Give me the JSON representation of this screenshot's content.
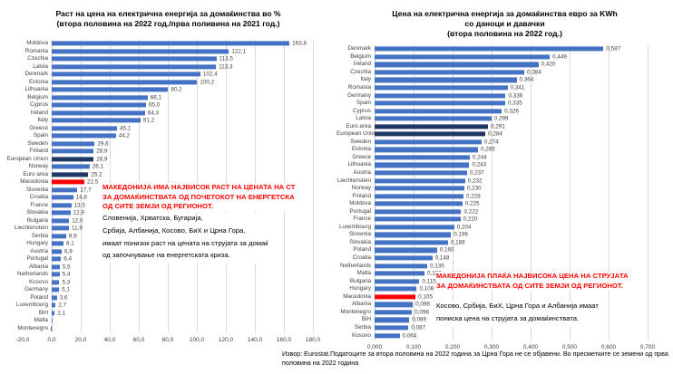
{
  "colors": {
    "bar_default": "#4472C4",
    "bar_aggregate": "#1F3864",
    "bar_highlight": "#FF0000",
    "gridline": "#D9D9D9",
    "annotation_red": "#FF0000",
    "annotation_black": "#000000"
  },
  "chart_data": [
    {
      "type": "bar",
      "orientation": "horizontal",
      "title": "Раст на цена на електрична енергија за домаќинства во %",
      "subtitle": "(втора половина на 2022 год./прва поливина на 2021 год.)",
      "xlim": [
        -20,
        180
      ],
      "xtick_step": 20,
      "xtick_labels": [
        "-20,0",
        "0,0",
        "20,0",
        "40,0",
        "60,0",
        "80,0",
        "100,0",
        "120,0",
        "140,0",
        "160,0",
        "180,0"
      ],
      "grid": true,
      "legend": "none",
      "categories": [
        "Moldova",
        "Romania",
        "Czechia",
        "Latvia",
        "Denmark",
        "Estonia",
        "Lithuania",
        "Belgium",
        "Cyprus",
        "Ireland",
        "Italy",
        "Greece",
        "Spain",
        "Sweden",
        "Finland",
        "European Union",
        "Norway",
        "Euro area",
        "Macedonia",
        "Slovenia",
        "Croatia",
        "France",
        "Slovakia",
        "Bulgaria",
        "Liechtenstein",
        "Serbia",
        "Hungary",
        "Austria",
        "Portugal",
        "Albania",
        "Netherlands",
        "Kosovo",
        "Germany",
        "Poland",
        "Luxembourg",
        "BiH",
        "Malta",
        "Montenegro"
      ],
      "values": [
        163.8,
        122.1,
        113.5,
        113.3,
        102.4,
        100.2,
        80.2,
        66.1,
        65.0,
        64.3,
        61.2,
        45.1,
        44.2,
        29.6,
        28.9,
        28.9,
        26.1,
        25.2,
        22.5,
        17.7,
        14.8,
        13.5,
        12.9,
        12.0,
        11.9,
        9.9,
        8.1,
        6.9,
        6.4,
        5.5,
        5.4,
        5.3,
        5.1,
        3.6,
        2.7,
        2.1,
        0.3,
        -0.6
      ],
      "value_labels": [
        "163,8",
        "122,1",
        "113,5",
        "113,3",
        "102,4",
        "100,2",
        "80,2",
        "66,1",
        "65,0",
        "64,3",
        "61,2",
        "45,1",
        "44,2",
        "29,6",
        "28,9",
        "28,9",
        "26,1",
        "25,2",
        "22,5",
        "17,7",
        "14,8",
        "13,5",
        "12,9",
        "12,0",
        "11,9",
        "9,9",
        "8,1",
        "6,9",
        "6,4",
        "5,5",
        "5,4",
        "5,3",
        "5,1",
        "3,6",
        "2,7",
        "2,1",
        "",
        ""
      ],
      "styles": [
        "default",
        "default",
        "default",
        "default",
        "default",
        "default",
        "default",
        "default",
        "default",
        "default",
        "default",
        "default",
        "default",
        "default",
        "default",
        "aggregate",
        "default",
        "aggregate",
        "highlight",
        "default",
        "default",
        "default",
        "default",
        "default",
        "default",
        "default",
        "default",
        "default",
        "default",
        "default",
        "default",
        "default",
        "default",
        "default",
        "default",
        "default",
        "default",
        "default"
      ]
    },
    {
      "type": "bar",
      "orientation": "horizontal",
      "title": "Цена на електрична енергија за домаќинства евро за KWh со даноци и давачки",
      "subtitle": "(втора половина на 2022 год.)",
      "xlim": [
        0,
        0.7
      ],
      "xtick_step": 0.1,
      "xtick_labels": [
        "0,000",
        "0,100",
        "0,200",
        "0,300",
        "0,400",
        "0,500",
        "0,600",
        "0,700"
      ],
      "grid": true,
      "legend": "none",
      "categories": [
        "Denmark",
        "Belgium",
        "Ireland",
        "Czechia",
        "Italy",
        "Romania",
        "Germany",
        "Spain",
        "Cyprus",
        "Latvia",
        "Euro area",
        "European Union",
        "Sweden",
        "Estonia",
        "Greece",
        "Lithuania",
        "Austria",
        "Liechtenstein",
        "Norway",
        "Finland",
        "Moldova",
        "Portugal",
        "France",
        "Luxembourg",
        "Slovenia",
        "Slovakia",
        "Poland",
        "Croatia",
        "Netherlands",
        "Malta",
        "Bulgaria",
        "Hungary",
        "Macedonia",
        "Albania",
        "Montenegro",
        "BiH",
        "Serbia",
        "Kosovo"
      ],
      "values": [
        0.587,
        0.449,
        0.42,
        0.384,
        0.364,
        0.341,
        0.336,
        0.335,
        0.326,
        0.299,
        0.291,
        0.284,
        0.274,
        0.265,
        0.244,
        0.243,
        0.237,
        0.232,
        0.23,
        0.228,
        0.225,
        0.222,
        0.22,
        0.204,
        0.196,
        0.188,
        0.16,
        0.148,
        0.135,
        0.128,
        0.115,
        0.108,
        0.105,
        0.098,
        0.096,
        0.089,
        0.087,
        0.064
      ],
      "value_labels": [
        "0,587",
        "0,449",
        "0,420",
        "0,384",
        "0,364",
        "0,341",
        "0,336",
        "0,335",
        "0,326",
        "0,299",
        "0,291",
        "0,284",
        "0,274",
        "0,265",
        "0,244",
        "0,243",
        "0,237",
        "0,232",
        "0,230",
        "0,228",
        "0,225",
        "0,222",
        "0,220",
        "0,204",
        "0,196",
        "0,188",
        "0,160",
        "0,148",
        "0,135",
        "0,128",
        "0,115",
        "0,108",
        "0,105",
        "0,098",
        "0,096",
        "0,089",
        "0,087",
        "0,064"
      ],
      "styles": [
        "default",
        "default",
        "default",
        "default",
        "default",
        "default",
        "default",
        "default",
        "default",
        "default",
        "aggregate",
        "aggregate",
        "default",
        "default",
        "default",
        "default",
        "default",
        "default",
        "default",
        "default",
        "default",
        "default",
        "default",
        "default",
        "default",
        "default",
        "default",
        "default",
        "default",
        "default",
        "default",
        "default",
        "highlight",
        "default",
        "default",
        "default",
        "default",
        "default"
      ]
    }
  ],
  "annotations": {
    "left_red_lines": [
      "МАКЕДОНИЈА ИМА НАЈВИСОК РАСТ НА ЦЕНАТА НА СТ",
      "ЗА ДОМАЌИНСТВАТА ОД ПОЧЕТОКОТ НА ЕНЕРГЕТСКА",
      "ОД СИТЕ ЗЕМЈИ ОД РЕГИОНОТ."
    ],
    "left_black_lines": [
      "Словенија, Хрватска, Бугарија,",
      "Србија, Албанија, Косово, БиХ и Црна Гора,",
      "имаат понизок раст на цената на струјата за домаќ",
      "од започнување на енергетската криза."
    ],
    "right_red_lines": [
      "МАКЕДОНИЈА ПЛАЌА НАЈВИСОКА ЦЕНА НА СТРУЈАТА",
      "ЗА ДОМАЌИНСТВАТА ОД СИТЕ ЗЕМЈИ ОД РЕГИОНОТ."
    ],
    "right_black_lines": [
      "Косово, Србија, БиХ, Црна Гора и Албанија имаат",
      "пониска цена на струјата за домаќинствата."
    ]
  },
  "source_note": "Извор: Eurostat.Податоците за втора половина на 2022 година за Црна Гора не се објавени. Во пресметките се земени од прва половина на 2022 година"
}
